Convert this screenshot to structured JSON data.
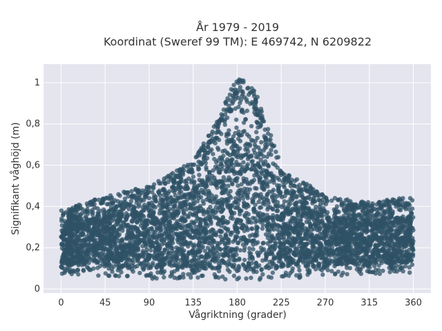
{
  "chart_data": {
    "type": "scatter",
    "title": "År 1979 - 2019",
    "subtitle": "Koordinat (Sweref 99 TM): E 469742, N 6209822",
    "xlabel": "Vågriktning (grader)",
    "ylabel": "Signifikant våghöjd (m)",
    "xlim": [
      -18,
      378
    ],
    "ylim": [
      -0.02,
      1.09
    ],
    "x_ticks": [
      0,
      45,
      90,
      135,
      180,
      225,
      270,
      315,
      360
    ],
    "x_tick_labels": [
      "0",
      "45",
      "90",
      "135",
      "180",
      "225",
      "270",
      "315",
      "360"
    ],
    "y_ticks": [
      0,
      0.2,
      0.4,
      0.6,
      0.8,
      1
    ],
    "y_tick_labels": [
      "0",
      "0,2",
      "0,4",
      "0,6",
      "0,8",
      "1"
    ],
    "grid": true,
    "legend": "none",
    "marker_color": "#2F5266",
    "background_color": "#E5E5EF",
    "envelope": {
      "direction": [
        0,
        45,
        90,
        135,
        160,
        180,
        200,
        225,
        270,
        315,
        360
      ],
      "lower": [
        0.07,
        0.06,
        0.05,
        0.05,
        0.04,
        0.04,
        0.04,
        0.05,
        0.06,
        0.07,
        0.08
      ],
      "upper": [
        0.38,
        0.45,
        0.5,
        0.62,
        0.82,
        1.04,
        0.95,
        0.6,
        0.45,
        0.42,
        0.45
      ]
    }
  }
}
